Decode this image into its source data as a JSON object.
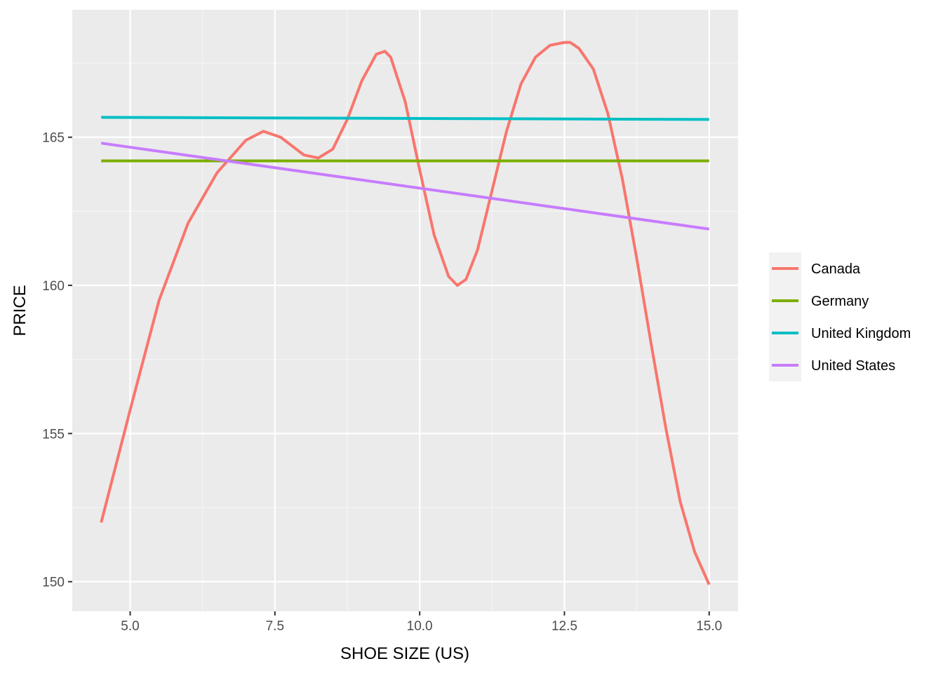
{
  "chart_data": {
    "type": "line",
    "title": "",
    "xlabel": "SHOE SIZE (US)",
    "ylabel": "PRICE",
    "xlim": [
      4.0,
      15.5
    ],
    "ylim": [
      149.0,
      169.3
    ],
    "x_ticks": [
      "5.0",
      "7.5",
      "10.0",
      "12.5",
      "15.0"
    ],
    "y_ticks": [
      "150",
      "155",
      "160",
      "165"
    ],
    "grid": true,
    "legend_position": "right",
    "colors": {
      "panel_background": "#ebebeb",
      "grid_major": "#ffffff",
      "grid_minor": "#f5f5f5"
    },
    "series": [
      {
        "name": "Canada",
        "color": "#f8766d",
        "x": [
          4.5,
          5.0,
          5.5,
          6.0,
          6.5,
          7.0,
          7.3,
          7.6,
          8.0,
          8.25,
          8.5,
          8.75,
          9.0,
          9.25,
          9.4,
          9.5,
          9.75,
          10.0,
          10.25,
          10.5,
          10.65,
          10.8,
          11.0,
          11.25,
          11.5,
          11.75,
          12.0,
          12.25,
          12.5,
          12.6,
          12.75,
          13.0,
          13.25,
          13.5,
          13.75,
          14.0,
          14.25,
          14.5,
          14.75,
          15.0
        ],
        "y": [
          152.0,
          155.8,
          159.5,
          162.1,
          163.8,
          164.9,
          165.2,
          165.0,
          164.4,
          164.3,
          164.6,
          165.6,
          166.9,
          167.8,
          167.9,
          167.7,
          166.2,
          163.9,
          161.7,
          160.3,
          160.0,
          160.2,
          161.2,
          163.2,
          165.2,
          166.8,
          167.7,
          168.1,
          168.2,
          168.2,
          168.0,
          167.3,
          165.8,
          163.6,
          160.9,
          158.0,
          155.2,
          152.7,
          151.0,
          149.9
        ]
      },
      {
        "name": "Germany",
        "color": "#7cae00",
        "x": [
          4.5,
          15.0
        ],
        "y": [
          164.2,
          164.2
        ]
      },
      {
        "name": "United Kingdom",
        "color": "#00bfc4",
        "x": [
          4.5,
          15.0
        ],
        "y": [
          165.67,
          165.6
        ]
      },
      {
        "name": "United States",
        "color": "#c77cff",
        "x": [
          4.5,
          15.0
        ],
        "y": [
          164.8,
          161.9
        ]
      }
    ]
  }
}
